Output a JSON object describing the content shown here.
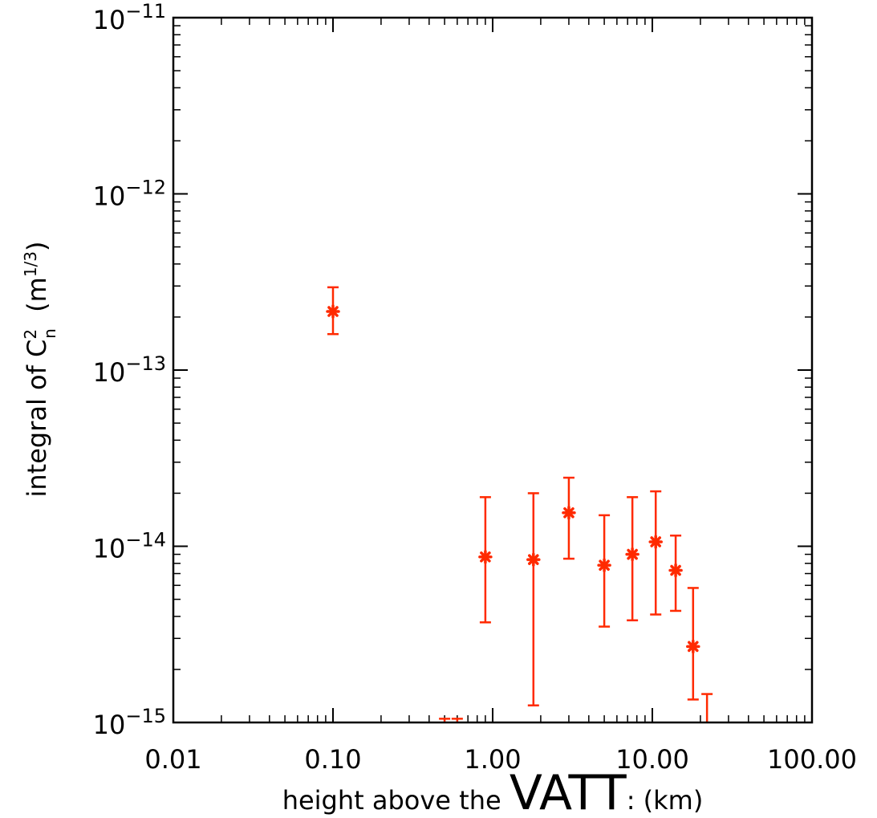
{
  "chart_data": {
    "type": "scatter",
    "xlabel_prefix": "height above the ",
    "xlabel_emph": "VATT",
    "xlabel_suffix": ": (km)",
    "ylabel_main": "integral of C",
    "ylabel_sup": "2",
    "ylabel_sub": "n",
    "ylabel_units_pre": "  (m",
    "ylabel_units_sup": "1/3",
    "ylabel_units_post": ")",
    "x_scale": "log",
    "y_scale": "log",
    "xlim": [
      0.01,
      100
    ],
    "ylim": [
      1e-15,
      1e-11
    ],
    "x_tick_labels": [
      {
        "value": 0.01,
        "label": "0.01"
      },
      {
        "value": 0.1,
        "label": "0.10"
      },
      {
        "value": 1,
        "label": "1.00"
      },
      {
        "value": 10,
        "label": "10.00"
      },
      {
        "value": 100,
        "label": "100.00"
      }
    ],
    "y_tick_labels": [
      {
        "value": 1e-15,
        "base": "10",
        "exp": "−15"
      },
      {
        "value": 1e-14,
        "base": "10",
        "exp": "−14"
      },
      {
        "value": 1e-13,
        "base": "10",
        "exp": "−13"
      },
      {
        "value": 1e-12,
        "base": "10",
        "exp": "−12"
      },
      {
        "value": 1e-11,
        "base": "10",
        "exp": "−11"
      }
    ],
    "grid": false,
    "color": "#ff2a00",
    "points": [
      {
        "x": 0.1,
        "y": 2.15e-13,
        "ylow": 1.6e-13,
        "yhigh": 2.95e-13
      },
      {
        "x": 0.9,
        "y": 8.7e-15,
        "ylow": 3.7e-15,
        "yhigh": 1.9e-14
      },
      {
        "x": 1.8,
        "y": 8.4e-15,
        "ylow": 1.25e-15,
        "yhigh": 2e-14
      },
      {
        "x": 3.0,
        "y": 1.55e-14,
        "ylow": 8.5e-15,
        "yhigh": 2.45e-14
      },
      {
        "x": 5.0,
        "y": 7.8e-15,
        "ylow": 3.5e-15,
        "yhigh": 1.5e-14
      },
      {
        "x": 7.5,
        "y": 9e-15,
        "ylow": 3.8e-15,
        "yhigh": 1.9e-14
      },
      {
        "x": 10.5,
        "y": 1.06e-14,
        "ylow": 4.1e-15,
        "yhigh": 2.05e-14
      },
      {
        "x": 14.0,
        "y": 7.3e-15,
        "ylow": 4.3e-15,
        "yhigh": 1.15e-14
      },
      {
        "x": 18.0,
        "y": 2.7e-15,
        "ylow": 1.35e-15,
        "yhigh": 5.8e-15
      },
      {
        "x": 22.0,
        "y": null,
        "ylow": null,
        "yhigh": 1.45e-15
      },
      {
        "x": 0.5,
        "y": null,
        "ylow": null,
        "yhigh": 1.05e-15
      },
      {
        "x": 0.6,
        "y": null,
        "ylow": null,
        "yhigh": 1.05e-15
      }
    ]
  }
}
